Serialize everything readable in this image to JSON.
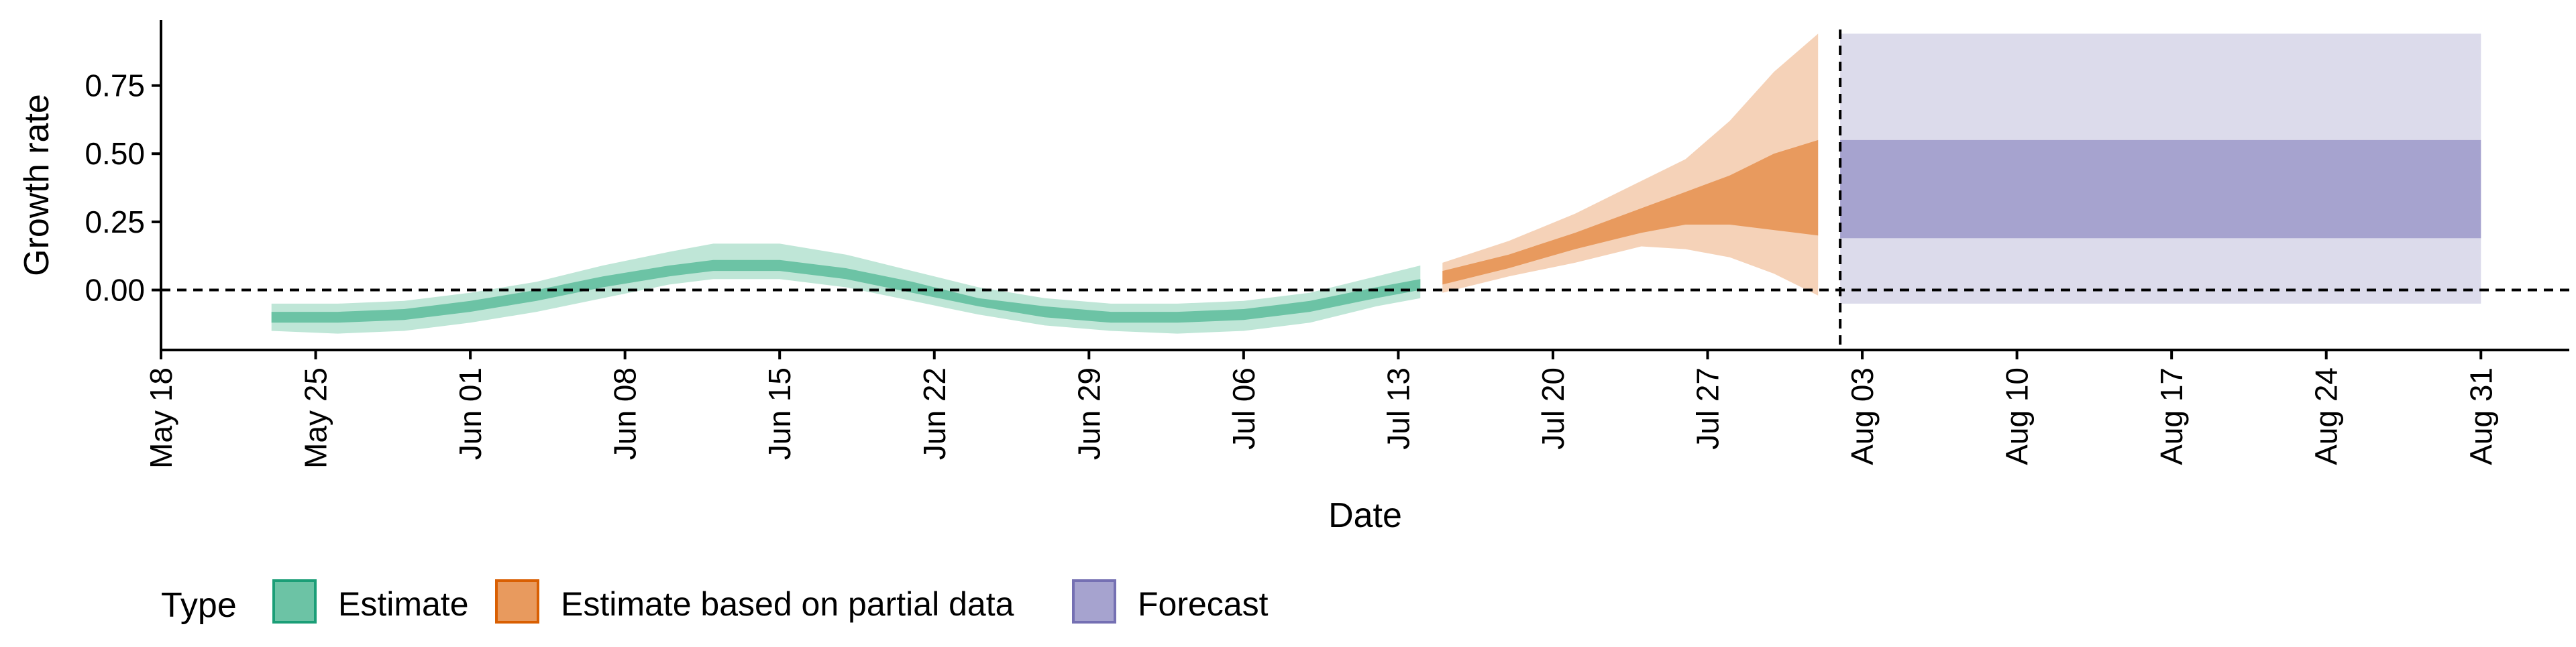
{
  "chart_data": {
    "type": "area",
    "xlabel": "Date",
    "ylabel": "Growth rate",
    "x_range": [
      "2020-05-18",
      "2020-09-04"
    ],
    "ylim": [
      -0.22,
      0.99
    ],
    "x_ticks": [
      "2020-05-18",
      "2020-05-25",
      "2020-06-01",
      "2020-06-08",
      "2020-06-15",
      "2020-06-22",
      "2020-06-29",
      "2020-07-06",
      "2020-07-13",
      "2020-07-20",
      "2020-07-27",
      "2020-08-03",
      "2020-08-10",
      "2020-08-17",
      "2020-08-24",
      "2020-08-31"
    ],
    "x_tick_labels": [
      "May 18",
      "May 25",
      "Jun 01",
      "Jun 08",
      "Jun 15",
      "Jun 22",
      "Jun 29",
      "Jul 06",
      "Jul 13",
      "Jul 20",
      "Jul 27",
      "Aug 03",
      "Aug 10",
      "Aug 17",
      "Aug 24",
      "Aug 31"
    ],
    "y_ticks": [
      0,
      0.25,
      0.5,
      0.75
    ],
    "y_tick_labels": [
      "0.00",
      "0.25",
      "0.50",
      "0.75"
    ],
    "reference_lines": {
      "horizontal_y": 0,
      "vertical_date": "2020-08-02"
    },
    "grid": false,
    "legend": {
      "title": "Type",
      "position": "bottom",
      "entries": [
        {
          "label": "Estimate",
          "fill": "#6cc3a5",
          "border": "#1b9e77"
        },
        {
          "label": "Estimate based on partial data",
          "fill": "#e89a5e",
          "border": "#d95f02"
        },
        {
          "label": "Forecast",
          "fill": "#a6a3cf",
          "border": "#7570b3"
        }
      ]
    },
    "series": [
      {
        "name": "Estimate",
        "colors": {
          "outer": "#bfe6d7",
          "inner": "#6cc3a5"
        },
        "points": [
          {
            "date": "2020-05-23",
            "lo90": -0.15,
            "lo50": -0.12,
            "hi50": -0.08,
            "hi90": -0.05
          },
          {
            "date": "2020-05-26",
            "lo90": -0.16,
            "lo50": -0.12,
            "hi50": -0.08,
            "hi90": -0.05
          },
          {
            "date": "2020-05-29",
            "lo90": -0.15,
            "lo50": -0.11,
            "hi50": -0.07,
            "hi90": -0.04
          },
          {
            "date": "2020-06-01",
            "lo90": -0.12,
            "lo50": -0.08,
            "hi50": -0.04,
            "hi90": -0.01
          },
          {
            "date": "2020-06-04",
            "lo90": -0.08,
            "lo50": -0.04,
            "hi50": 0.0,
            "hi90": 0.03
          },
          {
            "date": "2020-06-07",
            "lo90": -0.03,
            "lo50": 0.01,
            "hi50": 0.05,
            "hi90": 0.09
          },
          {
            "date": "2020-06-10",
            "lo90": 0.02,
            "lo50": 0.05,
            "hi50": 0.09,
            "hi90": 0.14
          },
          {
            "date": "2020-06-12",
            "lo90": 0.04,
            "lo50": 0.07,
            "hi50": 0.11,
            "hi90": 0.17
          },
          {
            "date": "2020-06-15",
            "lo90": 0.04,
            "lo50": 0.07,
            "hi50": 0.11,
            "hi90": 0.17
          },
          {
            "date": "2020-06-18",
            "lo90": 0.01,
            "lo50": 0.04,
            "hi50": 0.08,
            "hi90": 0.13
          },
          {
            "date": "2020-06-21",
            "lo90": -0.04,
            "lo50": -0.01,
            "hi50": 0.03,
            "hi90": 0.07
          },
          {
            "date": "2020-06-24",
            "lo90": -0.09,
            "lo50": -0.06,
            "hi50": -0.03,
            "hi90": 0.01
          },
          {
            "date": "2020-06-27",
            "lo90": -0.13,
            "lo50": -0.1,
            "hi50": -0.06,
            "hi90": -0.03
          },
          {
            "date": "2020-06-30",
            "lo90": -0.15,
            "lo50": -0.12,
            "hi50": -0.08,
            "hi90": -0.05
          },
          {
            "date": "2020-07-03",
            "lo90": -0.16,
            "lo50": -0.12,
            "hi50": -0.08,
            "hi90": -0.05
          },
          {
            "date": "2020-07-06",
            "lo90": -0.15,
            "lo50": -0.11,
            "hi50": -0.07,
            "hi90": -0.04
          },
          {
            "date": "2020-07-09",
            "lo90": -0.12,
            "lo50": -0.08,
            "hi50": -0.04,
            "hi90": -0.01
          },
          {
            "date": "2020-07-12",
            "lo90": -0.06,
            "lo50": -0.03,
            "hi50": 0.01,
            "hi90": 0.05
          },
          {
            "date": "2020-07-14",
            "lo90": -0.03,
            "lo50": 0.0,
            "hi50": 0.04,
            "hi90": 0.09
          }
        ]
      },
      {
        "name": "Estimate based on partial data",
        "colors": {
          "outer": "#f5d2b8",
          "inner": "#e89a5e"
        },
        "points": [
          {
            "date": "2020-07-15",
            "lo90": -0.01,
            "lo50": 0.02,
            "hi50": 0.07,
            "hi90": 0.1
          },
          {
            "date": "2020-07-18",
            "lo90": 0.05,
            "lo50": 0.08,
            "hi50": 0.13,
            "hi90": 0.18
          },
          {
            "date": "2020-07-21",
            "lo90": 0.1,
            "lo50": 0.15,
            "hi50": 0.21,
            "hi90": 0.28
          },
          {
            "date": "2020-07-24",
            "lo90": 0.16,
            "lo50": 0.21,
            "hi50": 0.3,
            "hi90": 0.4
          },
          {
            "date": "2020-07-26",
            "lo90": 0.15,
            "lo50": 0.24,
            "hi50": 0.36,
            "hi90": 0.48
          },
          {
            "date": "2020-07-28",
            "lo90": 0.12,
            "lo50": 0.24,
            "hi50": 0.42,
            "hi90": 0.62
          },
          {
            "date": "2020-07-30",
            "lo90": 0.06,
            "lo50": 0.22,
            "hi50": 0.5,
            "hi90": 0.8
          },
          {
            "date": "2020-08-01",
            "lo90": -0.02,
            "lo50": 0.2,
            "hi50": 0.55,
            "hi90": 0.94
          }
        ]
      },
      {
        "name": "Forecast",
        "colors": {
          "outer": "#dcdbeb",
          "inner": "#a6a3cf"
        },
        "points": [
          {
            "date": "2020-08-02",
            "lo90": -0.05,
            "lo50": 0.19,
            "hi50": 0.55,
            "hi90": 0.94
          },
          {
            "date": "2020-08-31",
            "lo90": -0.05,
            "lo50": 0.19,
            "hi50": 0.55,
            "hi90": 0.94
          }
        ]
      }
    ]
  }
}
